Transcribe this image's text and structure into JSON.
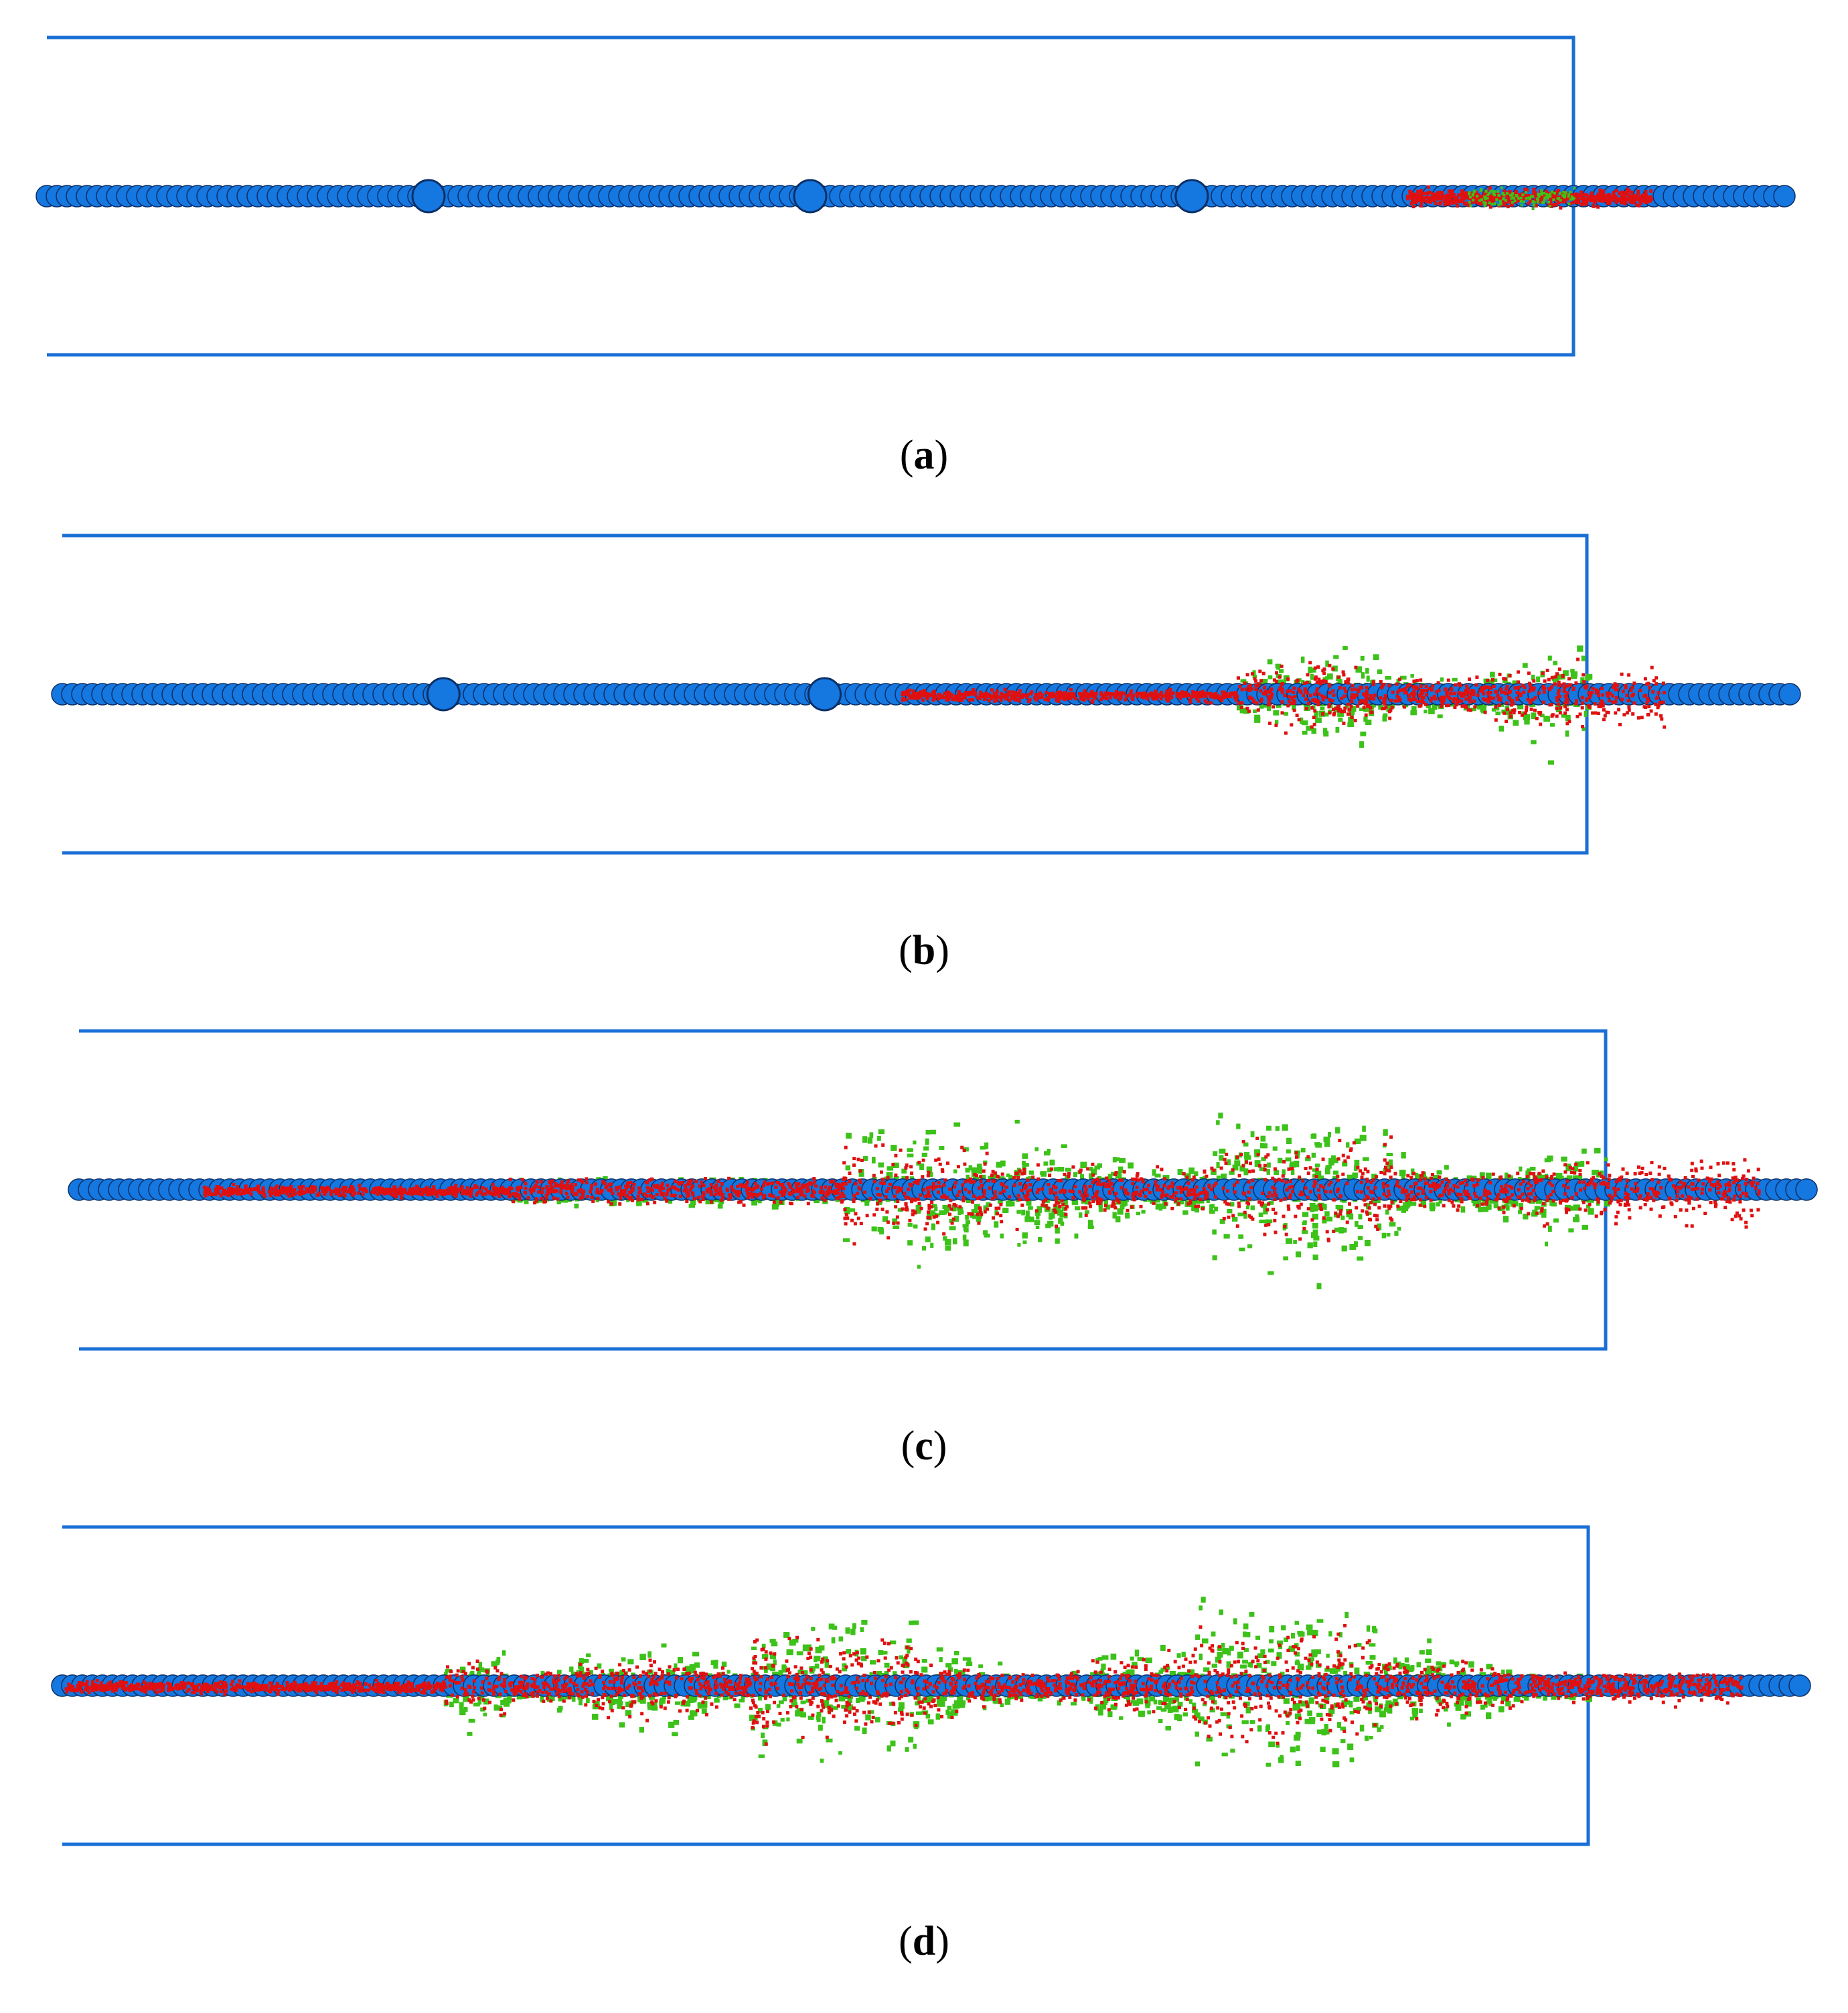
{
  "colors": {
    "frame": "#1a6fd6",
    "bead": "#1577e0",
    "bead_outline": "#0b2f66",
    "red_particles": "#e01010",
    "green_particles": "#3cc219"
  },
  "panels": [
    {
      "id": "a",
      "caption_open": "(",
      "caption_letter": "a",
      "caption_close": ")",
      "large_beads": 3,
      "damage_level": 0.12
    },
    {
      "id": "b",
      "caption_open": "(",
      "caption_letter": "b",
      "caption_close": ")",
      "large_beads": 2,
      "damage_level": 0.45
    },
    {
      "id": "c",
      "caption_open": "(",
      "caption_letter": "c",
      "caption_close": ")",
      "large_beads": 0,
      "damage_level": 0.8
    },
    {
      "id": "d",
      "caption_open": "(",
      "caption_letter": "d",
      "caption_close": ")",
      "large_beads": 0,
      "damage_level": 1.0
    }
  ]
}
